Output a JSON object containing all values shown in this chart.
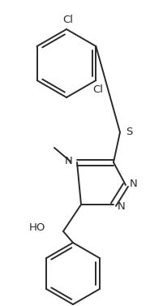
{
  "bg_color": "#ffffff",
  "line_color": "#2a2a2a",
  "line_width": 1.4,
  "figsize": [
    1.85,
    3.77
  ],
  "dpi": 100,
  "xlim": [
    0,
    185
  ],
  "ylim": [
    0,
    377
  ]
}
